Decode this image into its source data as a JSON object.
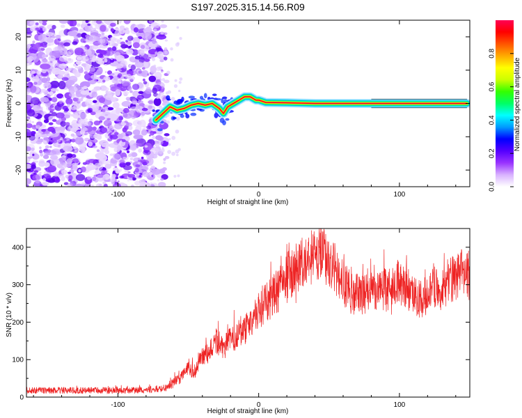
{
  "title": "S197.2025.315.14.56.R09",
  "chart_data": [
    {
      "type": "heatmap",
      "title": "S197.2025.315.14.56.R09",
      "xlabel": "Height of straight line (km)",
      "ylabel": "Frequency (Hz)",
      "xlim": [
        -165,
        150
      ],
      "ylim": [
        -25,
        25
      ],
      "x_ticks": [
        -100,
        0,
        100
      ],
      "y_ticks": [
        -20,
        -10,
        0,
        10,
        20
      ],
      "colorbar": {
        "label": "Normalized spectral amplitude",
        "range": [
          0,
          1
        ],
        "ticks": [
          "0.0",
          "0.2",
          "0.4",
          "0.6",
          "0.8"
        ],
        "colors": [
          "#ffffff",
          "#d9b3ff",
          "#9933ff",
          "#5500ff",
          "#0000ff",
          "#0099ff",
          "#00ffff",
          "#00ff66",
          "#33ff00",
          "#ccff00",
          "#ffff00",
          "#ffaa00",
          "#ff5500",
          "#ff0000",
          "#ff0055"
        ]
      },
      "ridge": {
        "x": [
          -73,
          -68,
          -63,
          -58,
          -53,
          -48,
          -43,
          -38,
          -33,
          -28,
          -25,
          -22,
          -18,
          -14,
          -10,
          -6,
          -2,
          0,
          5,
          20,
          40,
          60,
          80,
          100,
          120,
          148
        ],
        "y": [
          -5,
          -3,
          -1,
          -2,
          -1.5,
          -0.5,
          0,
          -0.5,
          0,
          -1.5,
          -3,
          -1,
          0,
          1,
          2,
          2,
          1,
          1,
          0.3,
          0.2,
          0,
          0,
          0,
          0,
          0,
          0
        ]
      }
    },
    {
      "type": "line",
      "xlabel": "Height of straight line (km)",
      "ylabel": "SNR (10 * v/v)",
      "xlim": [
        -165,
        150
      ],
      "ylim": [
        0,
        450
      ],
      "x_ticks": [
        -100,
        0,
        100
      ],
      "y_ticks": [
        0,
        100,
        200,
        300,
        400
      ],
      "color": "#ee2222",
      "series": [
        {
          "name": "SNR",
          "x": [
            -165,
            -140,
            -120,
            -100,
            -80,
            -65,
            -55,
            -50,
            -45,
            -40,
            -35,
            -30,
            -25,
            -20,
            -15,
            -10,
            -5,
            0,
            5,
            10,
            15,
            20,
            25,
            30,
            35,
            40,
            45,
            50,
            55,
            60,
            65,
            70,
            75,
            80,
            85,
            90,
            95,
            100,
            105,
            110,
            115,
            120,
            125,
            130,
            135,
            140,
            145,
            150
          ],
          "y": [
            18,
            18,
            18,
            18,
            18,
            25,
            55,
            75,
            70,
            110,
            120,
            150,
            130,
            155,
            165,
            180,
            200,
            230,
            250,
            270,
            290,
            320,
            340,
            360,
            370,
            380,
            385,
            365,
            340,
            300,
            280,
            275,
            280,
            300,
            290,
            285,
            300,
            305,
            295,
            280,
            265,
            275,
            300,
            290,
            310,
            320,
            330,
            325
          ]
        }
      ]
    }
  ]
}
